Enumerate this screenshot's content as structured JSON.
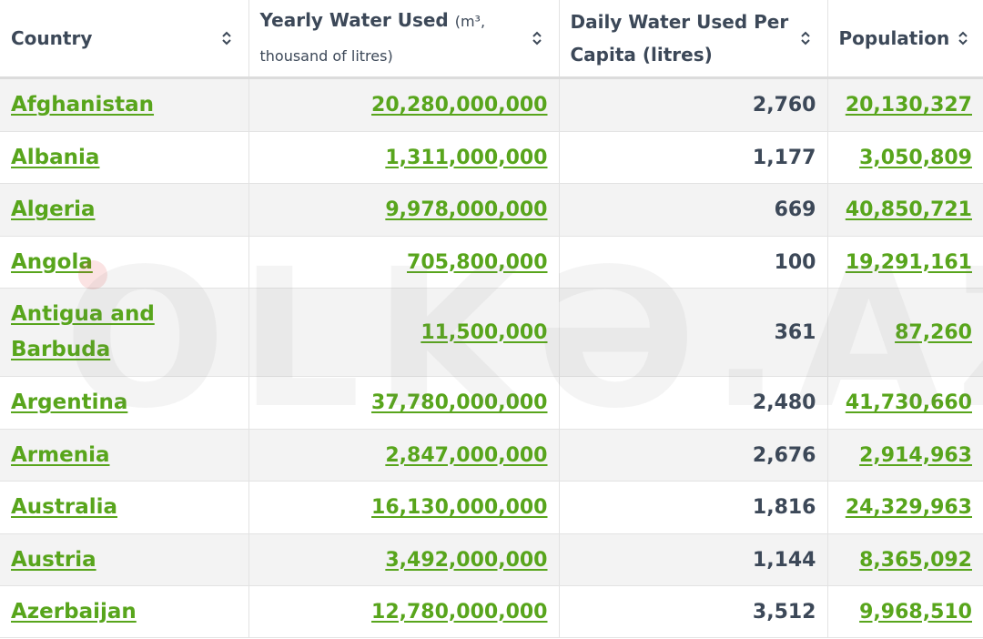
{
  "table": {
    "headers": {
      "country": "Country",
      "yearly_main": "Yearly Water Used",
      "yearly_sub": "(m³,",
      "yearly_sub2": "thousand of litres)",
      "daily": "Daily Water Used Per Capita (litres)",
      "population": "Population"
    },
    "rows": [
      {
        "country": "Afghanistan",
        "yearly": "20,280,000,000",
        "daily": "2,760",
        "population": "20,130,327"
      },
      {
        "country": "Albania",
        "yearly": "1,311,000,000",
        "daily": "1,177",
        "population": "3,050,809"
      },
      {
        "country": "Algeria",
        "yearly": "9,978,000,000",
        "daily": "669",
        "population": "40,850,721"
      },
      {
        "country": "Angola",
        "yearly": "705,800,000",
        "daily": "100",
        "population": "19,291,161"
      },
      {
        "country": "Antigua and Barbuda",
        "yearly": "11,500,000",
        "daily": "361",
        "population": "87,260"
      },
      {
        "country": "Argentina",
        "yearly": "37,780,000,000",
        "daily": "2,480",
        "population": "41,730,660"
      },
      {
        "country": "Armenia",
        "yearly": "2,847,000,000",
        "daily": "2,676",
        "population": "2,914,963"
      },
      {
        "country": "Australia",
        "yearly": "16,130,000,000",
        "daily": "1,816",
        "population": "24,329,963"
      },
      {
        "country": "Austria",
        "yearly": "3,492,000,000",
        "daily": "1,144",
        "population": "8,365,092"
      },
      {
        "country": "Azerbaijan",
        "yearly": "12,780,000,000",
        "daily": "3,512",
        "population": "9,968,510"
      }
    ]
  },
  "watermark": {
    "text": "OLKƏ.AZ"
  },
  "colors": {
    "link": "#58a51c",
    "text": "#3c4858",
    "stripe": "#f0f0f0",
    "border": "#e3e3e3"
  }
}
